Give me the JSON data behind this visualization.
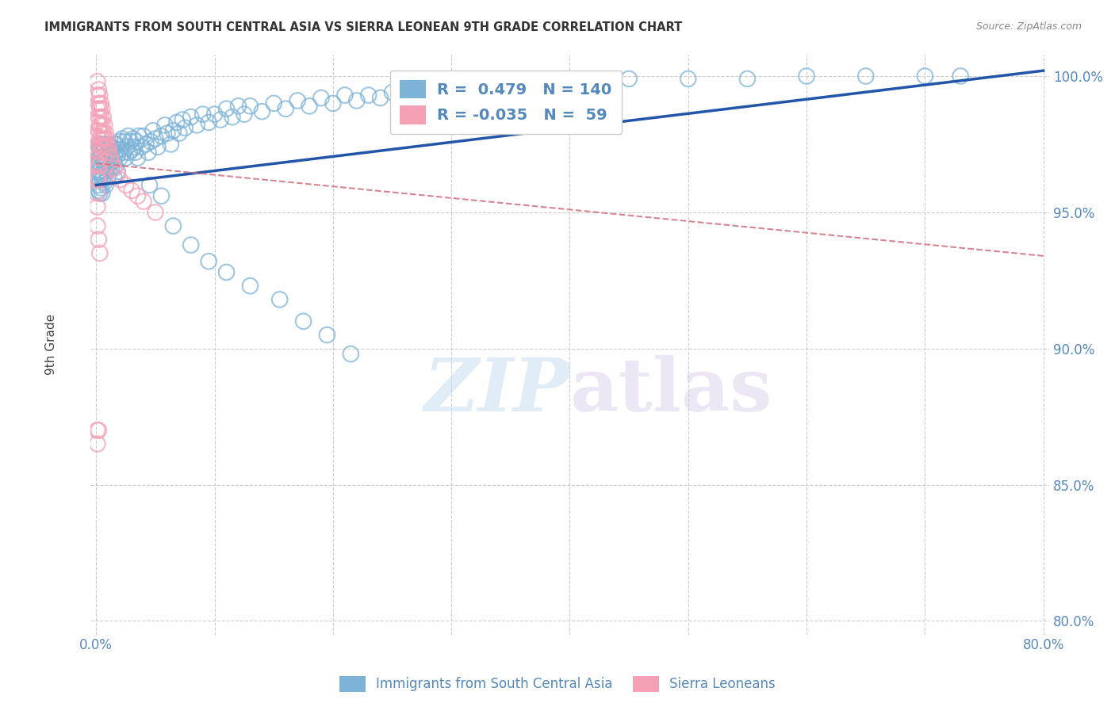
{
  "title": "IMMIGRANTS FROM SOUTH CENTRAL ASIA VS SIERRA LEONEAN 9TH GRADE CORRELATION CHART",
  "source": "Source: ZipAtlas.com",
  "ylabel": "9th Grade",
  "watermark": "ZIPatlas",
  "legend_blue_label": "Immigrants from South Central Asia",
  "legend_pink_label": "Sierra Leoneans",
  "r_blue": 0.479,
  "n_blue": 140,
  "r_pink": -0.035,
  "n_pink": 59,
  "xlim": [
    -0.005,
    0.805
  ],
  "ylim": [
    0.795,
    1.008
  ],
  "xticks": [
    0.0,
    0.1,
    0.2,
    0.3,
    0.4,
    0.5,
    0.6,
    0.7,
    0.8
  ],
  "xtick_labels": [
    "0.0%",
    "",
    "",
    "",
    "",
    "",
    "",
    "",
    "80.0%"
  ],
  "yticks": [
    0.8,
    0.85,
    0.9,
    0.95,
    1.0
  ],
  "ytick_labels": [
    "80.0%",
    "85.0%",
    "90.0%",
    "95.0%",
    "100.0%"
  ],
  "blue_color": "#7EB3D8",
  "pink_color": "#F4A0B5",
  "blue_line_color": "#2255AA",
  "pink_line_color": "#D07080",
  "title_color": "#333333",
  "axis_color": "#5588BB",
  "grid_color": "#CCCCCC",
  "background_color": "#FFFFFF",
  "blue_line_x0": 0.0,
  "blue_line_y0": 0.96,
  "blue_line_x1": 0.8,
  "blue_line_y1": 1.002,
  "pink_line_x0": 0.0,
  "pink_line_y0": 0.968,
  "pink_line_x1": 0.8,
  "pink_line_y1": 0.934,
  "blue_points_x": [
    0.001,
    0.001,
    0.001,
    0.002,
    0.002,
    0.002,
    0.002,
    0.002,
    0.003,
    0.003,
    0.003,
    0.003,
    0.004,
    0.004,
    0.004,
    0.004,
    0.005,
    0.005,
    0.005,
    0.005,
    0.006,
    0.006,
    0.006,
    0.007,
    0.007,
    0.007,
    0.008,
    0.008,
    0.008,
    0.009,
    0.009,
    0.01,
    0.01,
    0.01,
    0.011,
    0.011,
    0.012,
    0.012,
    0.013,
    0.013,
    0.014,
    0.015,
    0.015,
    0.015,
    0.016,
    0.016,
    0.017,
    0.018,
    0.018,
    0.019,
    0.02,
    0.02,
    0.021,
    0.022,
    0.023,
    0.024,
    0.025,
    0.026,
    0.027,
    0.028,
    0.029,
    0.03,
    0.031,
    0.032,
    0.033,
    0.034,
    0.035,
    0.036,
    0.038,
    0.04,
    0.042,
    0.044,
    0.046,
    0.048,
    0.05,
    0.052,
    0.055,
    0.058,
    0.06,
    0.063,
    0.065,
    0.068,
    0.07,
    0.073,
    0.075,
    0.08,
    0.085,
    0.09,
    0.095,
    0.1,
    0.105,
    0.11,
    0.115,
    0.12,
    0.125,
    0.13,
    0.14,
    0.15,
    0.16,
    0.17,
    0.18,
    0.19,
    0.2,
    0.21,
    0.22,
    0.23,
    0.24,
    0.25,
    0.26,
    0.27,
    0.28,
    0.3,
    0.32,
    0.34,
    0.36,
    0.38,
    0.4,
    0.42,
    0.45,
    0.5,
    0.55,
    0.6,
    0.65,
    0.7,
    0.73,
    0.045,
    0.055,
    0.065,
    0.08,
    0.095,
    0.11,
    0.13,
    0.155,
    0.175,
    0.195,
    0.215
  ],
  "blue_points_y": [
    0.972,
    0.968,
    0.963,
    0.975,
    0.97,
    0.965,
    0.96,
    0.958,
    0.973,
    0.968,
    0.962,
    0.957,
    0.975,
    0.97,
    0.964,
    0.959,
    0.972,
    0.967,
    0.962,
    0.957,
    0.975,
    0.969,
    0.963,
    0.973,
    0.967,
    0.961,
    0.97,
    0.965,
    0.96,
    0.972,
    0.966,
    0.975,
    0.969,
    0.963,
    0.972,
    0.966,
    0.974,
    0.968,
    0.972,
    0.966,
    0.974,
    0.975,
    0.969,
    0.963,
    0.972,
    0.967,
    0.975,
    0.971,
    0.965,
    0.973,
    0.976,
    0.97,
    0.973,
    0.977,
    0.972,
    0.976,
    0.97,
    0.974,
    0.978,
    0.972,
    0.976,
    0.973,
    0.977,
    0.974,
    0.972,
    0.976,
    0.97,
    0.978,
    0.974,
    0.978,
    0.975,
    0.972,
    0.976,
    0.98,
    0.977,
    0.974,
    0.978,
    0.982,
    0.979,
    0.975,
    0.98,
    0.983,
    0.979,
    0.984,
    0.981,
    0.985,
    0.982,
    0.986,
    0.983,
    0.986,
    0.984,
    0.988,
    0.985,
    0.989,
    0.986,
    0.989,
    0.987,
    0.99,
    0.988,
    0.991,
    0.989,
    0.992,
    0.99,
    0.993,
    0.991,
    0.993,
    0.992,
    0.994,
    0.993,
    0.995,
    0.994,
    0.995,
    0.996,
    0.997,
    0.997,
    0.998,
    0.998,
    0.998,
    0.999,
    0.999,
    0.999,
    1.0,
    1.0,
    1.0,
    1.0,
    0.96,
    0.956,
    0.945,
    0.938,
    0.932,
    0.928,
    0.923,
    0.918,
    0.91,
    0.905,
    0.898
  ],
  "pink_points_x": [
    0.001,
    0.001,
    0.001,
    0.001,
    0.001,
    0.001,
    0.001,
    0.001,
    0.002,
    0.002,
    0.002,
    0.002,
    0.002,
    0.002,
    0.003,
    0.003,
    0.003,
    0.003,
    0.003,
    0.004,
    0.004,
    0.004,
    0.004,
    0.005,
    0.005,
    0.005,
    0.006,
    0.006,
    0.006,
    0.007,
    0.007,
    0.008,
    0.008,
    0.009,
    0.009,
    0.01,
    0.011,
    0.012,
    0.013,
    0.015,
    0.018,
    0.02,
    0.025,
    0.03,
    0.035,
    0.04,
    0.05,
    0.001,
    0.001,
    0.001,
    0.002,
    0.002,
    0.001,
    0.002,
    0.003,
    0.001,
    0.001,
    0.002
  ],
  "pink_points_y": [
    0.998,
    0.993,
    0.988,
    0.983,
    0.978,
    0.973,
    0.968,
    0.963,
    0.995,
    0.99,
    0.985,
    0.98,
    0.975,
    0.97,
    0.993,
    0.988,
    0.982,
    0.977,
    0.972,
    0.99,
    0.985,
    0.979,
    0.974,
    0.988,
    0.982,
    0.977,
    0.985,
    0.979,
    0.974,
    0.982,
    0.977,
    0.979,
    0.974,
    0.977,
    0.972,
    0.974,
    0.972,
    0.97,
    0.968,
    0.966,
    0.964,
    0.962,
    0.96,
    0.958,
    0.956,
    0.954,
    0.95,
    0.962,
    0.957,
    0.952,
    0.967,
    0.962,
    0.945,
    0.94,
    0.935,
    0.87,
    0.865,
    0.87
  ]
}
